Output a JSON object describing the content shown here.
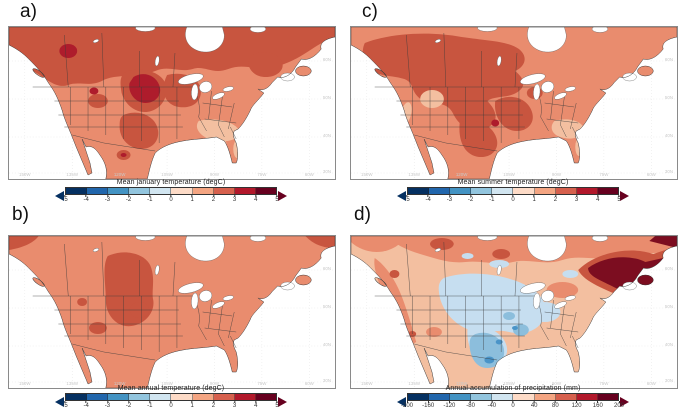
{
  "figure": {
    "panels": [
      {
        "id": "a",
        "label": "a)",
        "colorbar": {
          "title": "Mean january temperature (degC)",
          "units": "degC",
          "range": [
            -5,
            5
          ],
          "ticks": [
            "-5",
            "-4",
            "-3",
            "-2",
            "-1",
            "0",
            "1",
            "2",
            "3",
            "4",
            "5"
          ]
        }
      },
      {
        "id": "b",
        "label": "b)",
        "colorbar": {
          "title": "Mean annual temperature (degC)",
          "units": "degC",
          "range": [
            -5,
            5
          ],
          "ticks": [
            "-5",
            "-4",
            "-3",
            "-2",
            "-1",
            "0",
            "1",
            "2",
            "3",
            "4",
            "5"
          ]
        }
      },
      {
        "id": "c",
        "label": "c)",
        "colorbar": {
          "title": "Mean summer temperature (degC)",
          "units": "degC",
          "range": [
            -5,
            5
          ],
          "ticks": [
            "-5",
            "-4",
            "-3",
            "-2",
            "-1",
            "0",
            "1",
            "2",
            "3",
            "4",
            "5"
          ]
        }
      },
      {
        "id": "d",
        "label": "d)",
        "colorbar": {
          "title": "Annual accumulation of precipitation (mm)",
          "units": "mm",
          "range": [
            -200,
            200
          ],
          "ticks": [
            "-200",
            "-160",
            "-120",
            "-80",
            "-40",
            "0",
            "40",
            "80",
            "120",
            "160",
            "200"
          ]
        }
      }
    ],
    "palette_rdbu10": [
      "#053061",
      "#2166ac",
      "#4393c3",
      "#92c5de",
      "#d1e5f0",
      "#fddbc7",
      "#f4a582",
      "#d6604d",
      "#b2182b",
      "#67001f"
    ],
    "map_colors": {
      "base": "#e98c6e",
      "warm": "#c8553f",
      "hot": "#ae1c2c",
      "pale": "#f3bfa0",
      "maroon": "#7c0d20",
      "blue_light": "#c6def0",
      "blue_mid": "#8cbedc",
      "blue_strong": "#4a94c8",
      "water": "#ffffff"
    },
    "map_labels": {
      "lon": [
        "150W",
        "135W",
        "120W",
        "105W",
        "90W",
        "75W",
        "60W"
      ],
      "lat": [
        "60N",
        "50N",
        "40N",
        "30N"
      ]
    }
  },
  "chart_data": [
    {
      "type": "heatmap",
      "panel": "a",
      "title": "Mean january temperature (degC)",
      "colorbar_range": [
        -5,
        5
      ],
      "colorbar_step": 1,
      "units": "degC",
      "palette": "blue-to-red diverging (RdBu reversed), 10 classes with out-of-range arrows"
    },
    {
      "type": "heatmap",
      "panel": "b",
      "title": "Mean annual temperature (degC)",
      "colorbar_range": [
        -5,
        5
      ],
      "colorbar_step": 1,
      "units": "degC",
      "palette": "blue-to-red diverging (RdBu reversed), 10 classes with out-of-range arrows"
    },
    {
      "type": "heatmap",
      "panel": "c",
      "title": "Mean summer temperature (degC)",
      "colorbar_range": [
        -5,
        5
      ],
      "colorbar_step": 1,
      "units": "degC",
      "palette": "blue-to-red diverging (RdBu reversed), 10 classes with out-of-range arrows"
    },
    {
      "type": "heatmap",
      "panel": "d",
      "title": "Annual accumulation of precipitation (mm)",
      "colorbar_range": [
        -200,
        200
      ],
      "colorbar_step": 40,
      "units": "mm",
      "palette": "blue-to-red diverging (RdBu reversed), 10 classes with out-of-range arrows"
    }
  ]
}
